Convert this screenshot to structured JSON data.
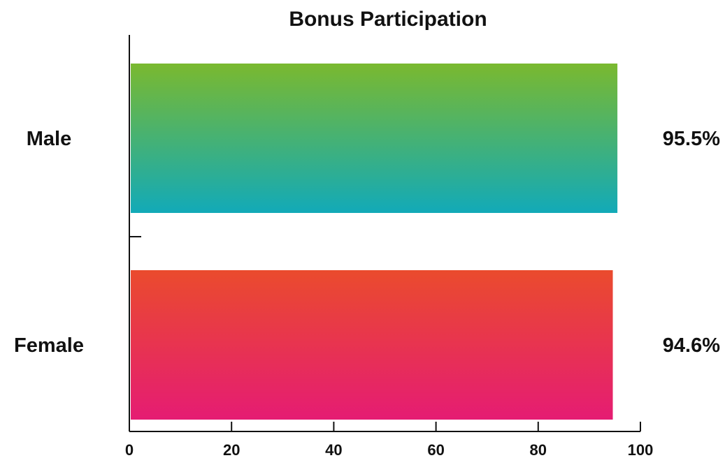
{
  "chart_data": {
    "type": "bar",
    "orientation": "horizontal",
    "title": "Bonus Participation",
    "xlabel": "",
    "ylabel": "",
    "categories": [
      "Male",
      "Female"
    ],
    "values": [
      95.5,
      94.6
    ],
    "value_labels": [
      "95.5%",
      "94.6%"
    ],
    "xlim": [
      0,
      100
    ],
    "x_ticks": [
      0,
      20,
      40,
      60,
      80,
      100
    ],
    "x_tick_labels": [
      "0",
      "20",
      "40",
      "60",
      "80",
      "100"
    ],
    "grid": false,
    "legend": "none",
    "bar_gradients": [
      {
        "top": "#7ab92f",
        "bottom": "#12aab8"
      },
      {
        "top": "#ea4b2d",
        "bottom": "#e51c73"
      }
    ]
  }
}
